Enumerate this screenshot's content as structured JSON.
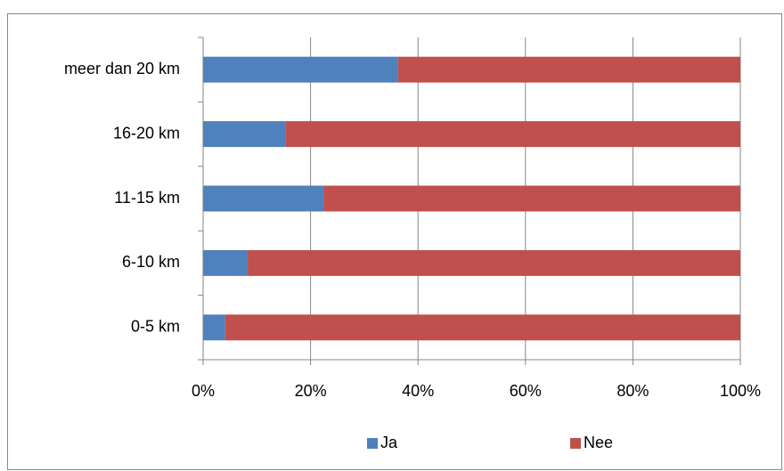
{
  "chart_data": {
    "type": "stacked_bar_horizontal",
    "categories": [
      "0-5 km",
      "6-10 km",
      "11-15 km",
      "16-20 km",
      "meer dan 20 km"
    ],
    "series": [
      {
        "name": "Ja",
        "color": "#4f81bd",
        "values": [
          4.1,
          8.3,
          22.4,
          15.3,
          36.3
        ]
      },
      {
        "name": "Nee",
        "color": "#c0504d",
        "values": [
          95.9,
          91.7,
          77.6,
          84.7,
          63.7
        ]
      }
    ],
    "xlim": [
      0,
      100
    ],
    "xticks": [
      {
        "value": 0,
        "label": "0%"
      },
      {
        "value": 20,
        "label": "20%"
      },
      {
        "value": 40,
        "label": "40%"
      },
      {
        "value": 60,
        "label": "60%"
      },
      {
        "value": 80,
        "label": "80%"
      },
      {
        "value": 100,
        "label": "100%"
      }
    ],
    "grid": true,
    "legend": "bottom"
  }
}
